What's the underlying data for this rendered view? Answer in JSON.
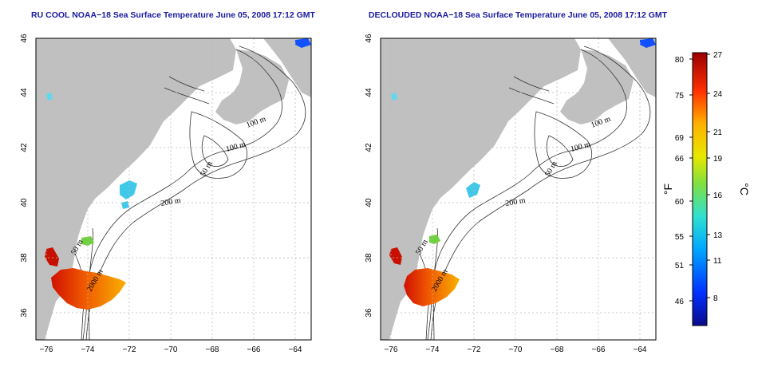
{
  "colors": {
    "title": "#1a1aa0",
    "land": "#c0c0c0",
    "sea": "#ffffff",
    "grid": "#bbbbbb"
  },
  "panels": [
    {
      "title": "RU COOL NOAA−18 Sea Surface Temperature June 05, 2008 17:12 GMT"
    },
    {
      "title": "DECLOUDED NOAA−18 Sea Surface Temperature June 05, 2008 17:12 GMT"
    }
  ],
  "map": {
    "lon_ticks": [
      "−76",
      "−74",
      "−72",
      "−70",
      "−68",
      "−66",
      "−64"
    ],
    "lat_ticks": [
      "36",
      "38",
      "40",
      "42",
      "44",
      "46"
    ],
    "contour_labels": [
      "100 m",
      "100 m",
      "50 m",
      "200 m",
      "50 m",
      "2000 m"
    ]
  },
  "colorbar": {
    "f_label": "°F",
    "c_label": "°C",
    "f_ticks": [
      "80",
      "75",
      "69",
      "66",
      "60",
      "55",
      "51",
      "46"
    ],
    "c_ticks": [
      "27",
      "24",
      "21",
      "19",
      "16",
      "13",
      "11",
      "8"
    ]
  }
}
